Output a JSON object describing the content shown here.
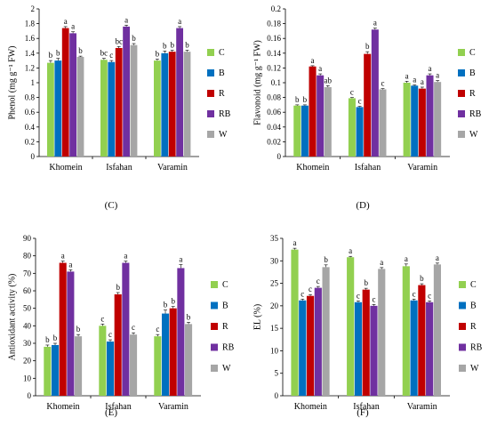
{
  "colors": {
    "C": "#92d050",
    "B": "#0070c0",
    "R": "#c00000",
    "RB": "#7030a0",
    "W": "#a6a6a6"
  },
  "chart_data": [
    {
      "panel_label": "(C)",
      "type": "bar",
      "ylabel": "Phenol (mg g⁻¹ FW)",
      "ylim": [
        0,
        2
      ],
      "yticks": [
        "0",
        "0.2",
        "0.4",
        "0.6",
        "0.8",
        "1",
        "1.2",
        "1.4",
        "1.6",
        "1.8",
        "2"
      ],
      "ytick_values": [
        0,
        0.2,
        0.4,
        0.6,
        0.8,
        1,
        1.2,
        1.4,
        1.6,
        1.8,
        2
      ],
      "categories": [
        "Khomein",
        "Isfahan",
        "Varamin"
      ],
      "legend_position": "right",
      "series": [
        {
          "name": "C",
          "values": [
            1.27,
            1.31,
            1.3
          ],
          "errors": [
            0.03,
            0.02,
            0.02
          ],
          "labels": [
            "b",
            "bc",
            "b"
          ]
        },
        {
          "name": "B",
          "values": [
            1.3,
            1.28,
            1.4
          ],
          "errors": [
            0.03,
            0.02,
            0.03
          ],
          "labels": [
            "b",
            "c",
            "b"
          ]
        },
        {
          "name": "R",
          "values": [
            1.74,
            1.47,
            1.42
          ],
          "errors": [
            0.02,
            0.02,
            0.02
          ],
          "labels": [
            "a",
            "bc",
            "b"
          ]
        },
        {
          "name": "RB",
          "values": [
            1.67,
            1.76,
            1.74
          ],
          "errors": [
            0.02,
            0.02,
            0.02
          ],
          "labels": [
            "a",
            "a",
            "a"
          ]
        },
        {
          "name": "W",
          "values": [
            1.35,
            1.51,
            1.42
          ],
          "errors": [
            0.01,
            0.02,
            0.02
          ],
          "labels": [
            "b",
            "b",
            "b"
          ]
        }
      ]
    },
    {
      "panel_label": "(D)",
      "type": "bar",
      "ylabel": "Flavonoid (mg g⁻¹ FW)",
      "ylim": [
        0,
        0.2
      ],
      "yticks": [
        "0",
        "0.02",
        "0.04",
        "0.06",
        "0.08",
        "0.1",
        "0.12",
        "0.14",
        "0.16",
        "0.18",
        "0.2"
      ],
      "ytick_values": [
        0,
        0.02,
        0.04,
        0.06,
        0.08,
        0.1,
        0.12,
        0.14,
        0.16,
        0.18,
        0.2
      ],
      "categories": [
        "Khomein",
        "Isfahan",
        "Varamin"
      ],
      "legend_position": "right",
      "series": [
        {
          "name": "C",
          "values": [
            0.069,
            0.079,
            0.1
          ],
          "errors": [
            0.001,
            0.001,
            0.002
          ],
          "labels": [
            "b",
            "c",
            "a"
          ]
        },
        {
          "name": "B",
          "values": [
            0.069,
            0.067,
            0.096
          ],
          "errors": [
            0.001,
            0.001,
            0.001
          ],
          "labels": [
            "b",
            "c",
            "a"
          ]
        },
        {
          "name": "R",
          "values": [
            0.122,
            0.139,
            0.092
          ],
          "errors": [
            0.001,
            0.003,
            0.002
          ],
          "labels": [
            "a",
            "b",
            "a"
          ]
        },
        {
          "name": "RB",
          "values": [
            0.11,
            0.172,
            0.11
          ],
          "errors": [
            0.002,
            0.002,
            0.002
          ],
          "labels": [
            "a",
            "a",
            "a"
          ]
        },
        {
          "name": "W",
          "values": [
            0.094,
            0.091,
            0.101
          ],
          "errors": [
            0.002,
            0.001,
            0.002
          ],
          "labels": [
            "ab",
            "c",
            "a"
          ]
        }
      ]
    },
    {
      "panel_label": "(E)",
      "type": "bar",
      "ylabel": "Antioxidant activity (%)",
      "ylim": [
        0,
        90
      ],
      "yticks": [
        "0",
        "10",
        "20",
        "30",
        "40",
        "50",
        "60",
        "70",
        "80",
        "90"
      ],
      "ytick_values": [
        0,
        10,
        20,
        30,
        40,
        50,
        60,
        70,
        80,
        90
      ],
      "categories": [
        "Khomein",
        "Isfahan",
        "Varamin"
      ],
      "legend_position": "right",
      "series": [
        {
          "name": "C",
          "values": [
            28,
            40,
            34
          ],
          "errors": [
            1,
            1,
            1
          ],
          "labels": [
            "b",
            "c",
            "c"
          ]
        },
        {
          "name": "B",
          "values": [
            29,
            31,
            47
          ],
          "errors": [
            1,
            1,
            2
          ],
          "labels": [
            "b",
            "c",
            "b"
          ]
        },
        {
          "name": "R",
          "values": [
            76,
            58,
            50
          ],
          "errors": [
            1,
            1,
            1
          ],
          "labels": [
            "a",
            "b",
            "b"
          ]
        },
        {
          "name": "RB",
          "values": [
            71,
            76,
            73
          ],
          "errors": [
            1,
            1,
            2
          ],
          "labels": [
            "a",
            "a",
            "a"
          ]
        },
        {
          "name": "W",
          "values": [
            34,
            35,
            41
          ],
          "errors": [
            1,
            1,
            1
          ],
          "labels": [
            "b",
            "c",
            "b"
          ]
        }
      ]
    },
    {
      "panel_label": "(F)",
      "type": "bar",
      "ylabel": "EL (%)",
      "ylim": [
        0,
        35
      ],
      "yticks": [
        "0",
        "5",
        "10",
        "15",
        "20",
        "25",
        "30",
        "35"
      ],
      "ytick_values": [
        0,
        5,
        10,
        15,
        20,
        25,
        30,
        35
      ],
      "categories": [
        "Khomein",
        "Isfahan",
        "Varamin"
      ],
      "legend_position": "right",
      "series": [
        {
          "name": "C",
          "values": [
            32.5,
            30.8,
            28.8
          ],
          "errors": [
            0.3,
            0.2,
            0.5
          ],
          "labels": [
            "a",
            "a",
            "a"
          ]
        },
        {
          "name": "B",
          "values": [
            21.2,
            20.8,
            21.2
          ],
          "errors": [
            0.3,
            0.3,
            0.3
          ],
          "labels": [
            "c",
            "c",
            "c"
          ]
        },
        {
          "name": "R",
          "values": [
            22.2,
            23.6,
            24.6
          ],
          "errors": [
            0.3,
            0.3,
            0.3
          ],
          "labels": [
            "c",
            "b",
            "b"
          ]
        },
        {
          "name": "RB",
          "values": [
            24.0,
            20.0,
            20.8
          ],
          "errors": [
            0.3,
            0.3,
            0.3
          ],
          "labels": [
            "c",
            "c",
            "c"
          ]
        },
        {
          "name": "W",
          "values": [
            28.6,
            28.2,
            29.2
          ],
          "errors": [
            0.5,
            0.3,
            0.3
          ],
          "labels": [
            "b",
            "a",
            "a"
          ]
        }
      ]
    }
  ]
}
